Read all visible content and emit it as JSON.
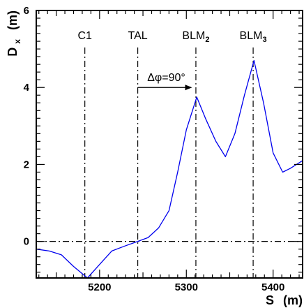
{
  "chart_data": {
    "type": "line",
    "xlabel": "S",
    "xlabel_unit": "(m)",
    "ylabel_main": "D",
    "ylabel_sub": "x",
    "ylabel_unit": "(m)",
    "xlim": [
      5127,
      5434
    ],
    "ylim": [
      -0.95,
      6
    ],
    "x_ticks": [
      5200,
      5300,
      5400
    ],
    "y_ticks": [
      0,
      2,
      4,
      6
    ],
    "grid": false,
    "series": [
      {
        "color": "#0000ee",
        "x": [
          5127,
          5142,
          5156,
          5170,
          5186,
          5200,
          5214,
          5229,
          5244,
          5256,
          5268,
          5280,
          5290,
          5300,
          5312,
          5322,
          5334,
          5345,
          5356,
          5367,
          5378,
          5389,
          5400,
          5411,
          5420,
          5434
        ],
        "y": [
          -0.2,
          -0.25,
          -0.35,
          -0.65,
          -0.95,
          -0.6,
          -0.25,
          -0.12,
          0.0,
          0.1,
          0.35,
          0.8,
          1.8,
          2.9,
          3.75,
          3.2,
          2.6,
          2.2,
          2.8,
          3.8,
          4.7,
          3.6,
          2.3,
          1.8,
          1.9,
          2.1
        ]
      }
    ],
    "reference_lines": {
      "horizontal": [
        0
      ],
      "vertical": [
        {
          "x": 5183,
          "label": "C1",
          "sub": ""
        },
        {
          "x": 5244,
          "label": "TAL",
          "sub": ""
        },
        {
          "x": 5311,
          "label": "BLM",
          "sub": "2"
        },
        {
          "x": 5377,
          "label": "BLM",
          "sub": "3"
        }
      ]
    },
    "annotation": {
      "text": "Δφ=90°",
      "from_x": 5244,
      "to_x": 5305,
      "y": 4.0
    }
  }
}
